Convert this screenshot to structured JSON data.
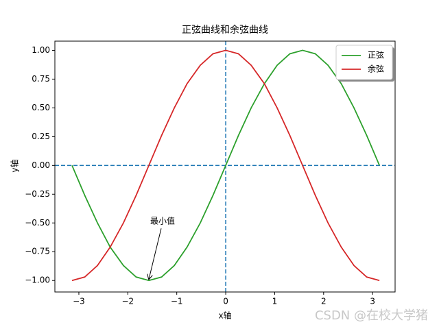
{
  "chart_data": {
    "type": "line",
    "title": "正弦曲线和余弦曲线",
    "x_label": "x轴",
    "y_label": "y轴",
    "x": [
      -3.14,
      -2.88,
      -2.62,
      -2.36,
      -2.09,
      -1.83,
      -1.57,
      -1.31,
      -1.05,
      -0.79,
      -0.52,
      -0.26,
      0,
      0.26,
      0.52,
      0.79,
      1.05,
      1.31,
      1.57,
      1.83,
      2.09,
      2.36,
      2.62,
      2.88,
      3.14
    ],
    "series": [
      {
        "name": "正弦",
        "color": "#2ca02c",
        "values": [
          0,
          -0.26,
          -0.5,
          -0.71,
          -0.87,
          -0.97,
          -1,
          -0.97,
          -0.87,
          -0.71,
          -0.5,
          -0.26,
          0,
          0.26,
          0.5,
          0.71,
          0.87,
          0.97,
          1,
          0.97,
          0.87,
          0.71,
          0.5,
          0.26,
          0
        ]
      },
      {
        "name": "余弦",
        "color": "#d62728",
        "values": [
          -1,
          -0.97,
          -0.87,
          -0.71,
          -0.5,
          -0.26,
          0,
          0.26,
          0.5,
          0.71,
          0.87,
          0.97,
          1,
          0.97,
          0.87,
          0.71,
          0.5,
          0.26,
          0,
          -0.26,
          -0.5,
          -0.71,
          -0.87,
          -0.97,
          -1
        ]
      }
    ],
    "xlim": [
      -3.49,
      3.46
    ],
    "ylim": [
      -1.1,
      1.08
    ],
    "xticks": [
      {
        "value": -3,
        "label": "−3"
      },
      {
        "value": -2,
        "label": "−2"
      },
      {
        "value": -1,
        "label": "−1"
      },
      0,
      1,
      2,
      3
    ],
    "yticks": [
      {
        "value": -1,
        "label": "−1.00"
      },
      {
        "value": -0.75,
        "label": "−0.75"
      },
      {
        "value": -0.5,
        "label": "−0.50"
      },
      {
        "value": -0.25,
        "label": "−0.25"
      },
      {
        "value": 0,
        "label": "0.00"
      },
      {
        "value": 0.25,
        "label": "0.25"
      },
      {
        "value": 0.5,
        "label": "0.50"
      },
      {
        "value": 0.75,
        "label": "0.75"
      },
      {
        "value": 1,
        "label": "1.00"
      }
    ],
    "hlines": [
      0
    ],
    "vlines": [
      0
    ],
    "reference_color": "#1f77b4",
    "annotations": [
      {
        "text": "最小值",
        "xy": [
          -1.57,
          -1
        ]
      }
    ],
    "legend": "upper right",
    "watermark": "CSDN @在校大学猪"
  }
}
